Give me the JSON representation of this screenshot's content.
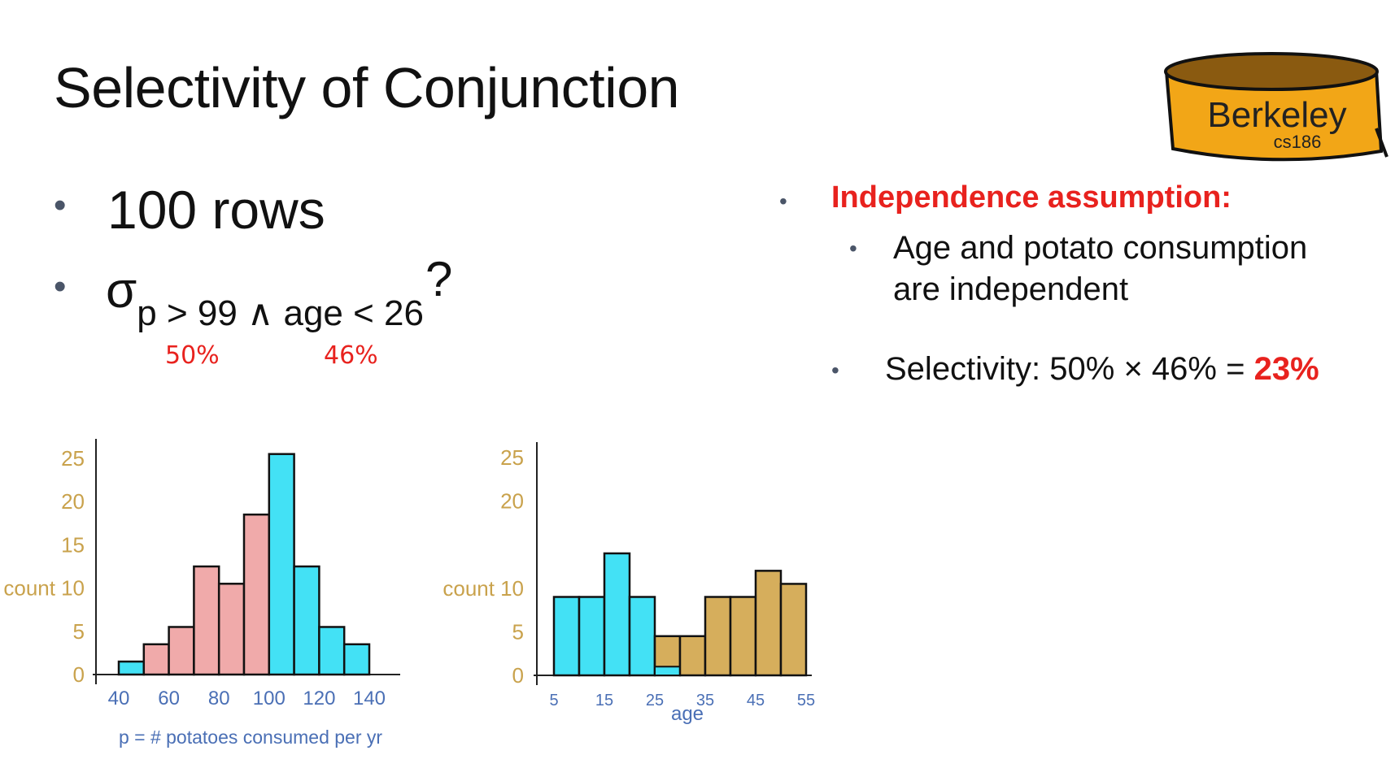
{
  "slide": {
    "title": "Selectivity of Conjunction",
    "left_bullets": {
      "rows": "100 rows",
      "sigma_symbol": "σ",
      "sigma_subscript": "p > 99 ∧ age < 26",
      "sigma_suffix": "?",
      "pct_p": "50%",
      "pct_age": "46%"
    },
    "right_bullets": {
      "heading": "Independence assumption:",
      "sub_line1": "Age and potato consumption",
      "sub_line2": "are independent",
      "selectivity_prefix": "Selectivity: 50% × 46% = ",
      "selectivity_result": "23%"
    },
    "logo": {
      "text": "Berkeley",
      "subtext": "cs186"
    }
  },
  "colors": {
    "pink": "#f0aaaa",
    "cyan": "#43e1f5",
    "gold": "#d6ae5c",
    "axis_label": "#c9a24c",
    "tick_blue": "#4a6fb5",
    "red": "#e8221e",
    "logo_fill": "#f2a617"
  },
  "chart_data": [
    {
      "type": "bar",
      "xlabel": "p = # potatoes consumed per yr",
      "ylabel": "count",
      "ylim": [
        0,
        25
      ],
      "y_ticks": [
        "0",
        "5",
        "10",
        "15",
        "20",
        "25"
      ],
      "x_ticks": [
        "40",
        "60",
        "80",
        "100",
        "120",
        "140"
      ],
      "bins": [
        {
          "from": 40,
          "to": 50,
          "value": 1.5,
          "color": "cyan"
        },
        {
          "from": 50,
          "to": 60,
          "value": 3.5,
          "color": "pink"
        },
        {
          "from": 60,
          "to": 70,
          "value": 5.5,
          "color": "pink"
        },
        {
          "from": 70,
          "to": 80,
          "value": 12.5,
          "color": "pink"
        },
        {
          "from": 80,
          "to": 90,
          "value": 10.5,
          "color": "pink"
        },
        {
          "from": 90,
          "to": 100,
          "value": 18.5,
          "color": "pink"
        },
        {
          "from": 100,
          "to": 110,
          "value": 25.5,
          "color": "cyan"
        },
        {
          "from": 110,
          "to": 120,
          "value": 12.5,
          "color": "cyan"
        },
        {
          "from": 120,
          "to": 130,
          "value": 5.5,
          "color": "cyan"
        },
        {
          "from": 130,
          "to": 140,
          "value": 3.5,
          "color": "cyan"
        }
      ]
    },
    {
      "type": "bar",
      "xlabel": "age",
      "ylabel": "count",
      "ylim": [
        0,
        25
      ],
      "y_ticks": [
        "0",
        "5",
        "10",
        "20",
        "25"
      ],
      "x_ticks": [
        "5",
        "15",
        "25",
        "35",
        "45",
        "55"
      ],
      "bins": [
        {
          "from": 5,
          "to": 10,
          "value": 9,
          "color": "cyan"
        },
        {
          "from": 10,
          "to": 15,
          "value": 9,
          "color": "cyan"
        },
        {
          "from": 15,
          "to": 20,
          "value": 14,
          "color": "cyan"
        },
        {
          "from": 20,
          "to": 25,
          "value": 9,
          "color": "cyan"
        },
        {
          "from": 25,
          "to": 30,
          "value": 4.5,
          "color": "gold",
          "overlay": 1,
          "overlay_color": "cyan"
        },
        {
          "from": 30,
          "to": 35,
          "value": 4.5,
          "color": "gold"
        },
        {
          "from": 35,
          "to": 40,
          "value": 9,
          "color": "gold"
        },
        {
          "from": 40,
          "to": 45,
          "value": 9,
          "color": "gold"
        },
        {
          "from": 45,
          "to": 50,
          "value": 12,
          "color": "gold"
        },
        {
          "from": 50,
          "to": 55,
          "value": 10.5,
          "color": "gold"
        }
      ]
    }
  ]
}
